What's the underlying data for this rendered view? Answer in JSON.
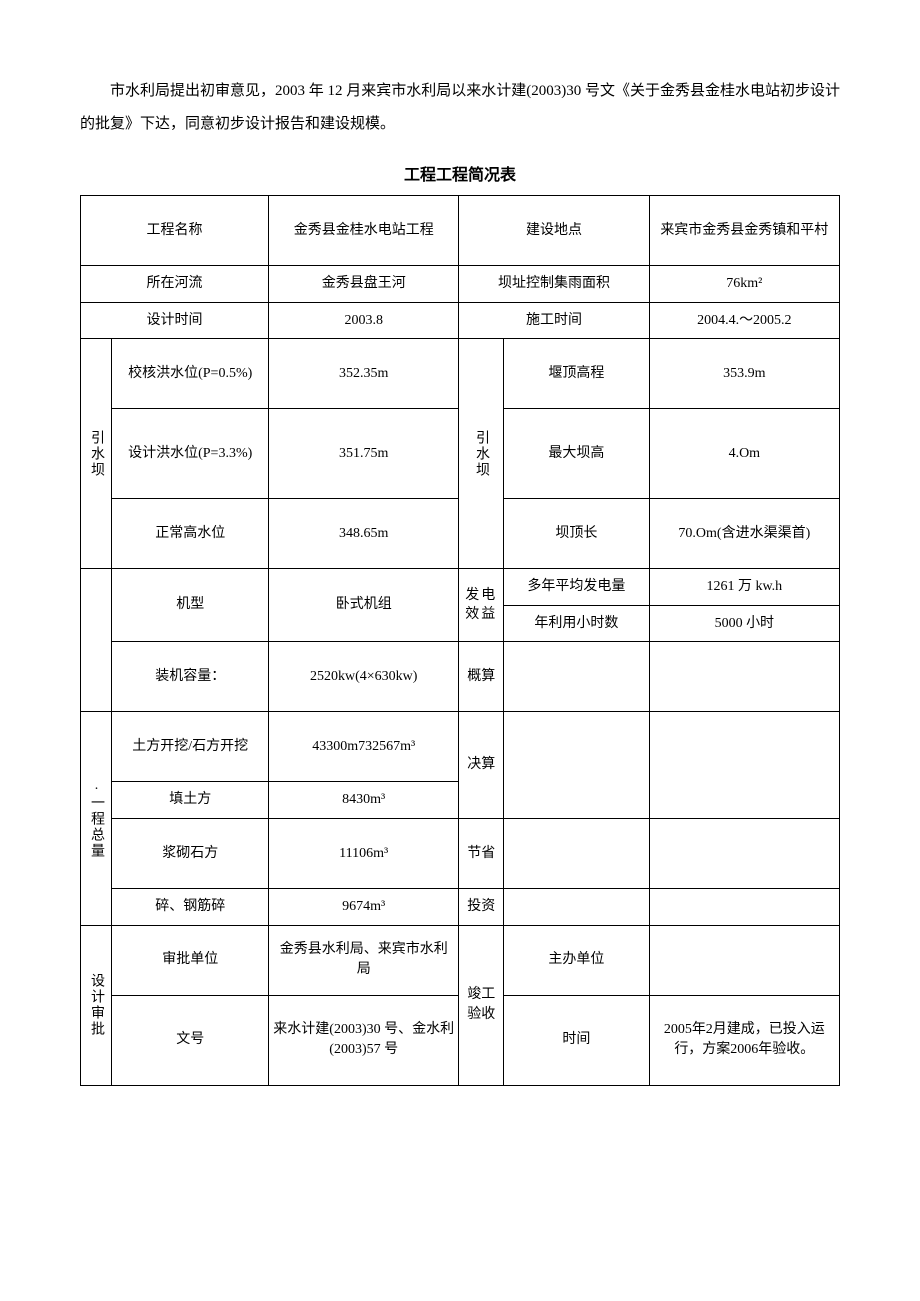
{
  "paragraph": "市水利局提出初审意见，2003 年 12 月来宾市水利局以来水计建(2003)30 号文《关于金秀县金桂水电站初步设计的批复》下达，同意初步设计报告和建设规模。",
  "table_title": "工程工程简况表",
  "header": {
    "project_name_label": "工程名称",
    "project_name": "金秀县金桂水电站工程",
    "location_label": "建设地点",
    "location": "来宾市金秀县金秀镇和平村",
    "river_label": "所在河流",
    "river": "金秀县盘王河",
    "catchment_label": "坝址控制集雨面积",
    "catchment": "76km²",
    "design_time_label": "设计时间",
    "design_time": "2003.8",
    "construction_time_label": "施工时间",
    "construction_time": "2004.4.～2005.2"
  },
  "dam_left_label": "引水坝",
  "dam_right_label": "引水坝",
  "dam": {
    "check_flood_label": "校核洪水位(P=0.5%)",
    "check_flood": "352.35m",
    "crest_elev_label": "堰顶高程",
    "crest_elev": "353.9m",
    "design_flood_label": "设计洪水位(P=3.3%)",
    "design_flood": "351.75m",
    "max_height_label": "最大坝高",
    "max_height": "4.Om",
    "normal_level_label": "正常高水位",
    "normal_level": "348.65m",
    "crest_length_label": "坝顶长",
    "crest_length": "70.Om(含进水渠渠首)"
  },
  "machine": {
    "type_label": "机型",
    "type": "卧式机组",
    "benefit_label": "发电效益",
    "annual_gen_label": "多年平均发电量",
    "annual_gen": "1261 万 kw.h",
    "hours_label": "年利用小时数",
    "hours": "5000 小时",
    "capacity_label": "装机容量：",
    "capacity": "2520kw(4×630kw)",
    "estimate_label": "概算"
  },
  "quantity_label": ".一程总量",
  "quantity": {
    "excavation_label": "土方开挖/石方开挖",
    "excavation": "43300m732567m³",
    "settlement_label": "决算",
    "fill_label": "填土方",
    "fill": "8430m³",
    "masonry_label": "浆砌石方",
    "masonry": "11106m³",
    "save_label": "节省",
    "concrete_label": "碎、钢筋碎",
    "concrete": "9674m³",
    "invest_label": "投资"
  },
  "approval_label": "设计审批",
  "approval": {
    "unit_label": "审批单位",
    "unit": "金秀县水利局、来宾市水利局",
    "acceptance_label": "竣工验收",
    "host_label": "主办单位",
    "host": "",
    "docno_label": "文号",
    "docno": "来水计建(2003)30 号、金水利(2003)57 号",
    "time_label": "时间",
    "time": "2005年2月建成，已投入运行，方案2006年验收。"
  }
}
